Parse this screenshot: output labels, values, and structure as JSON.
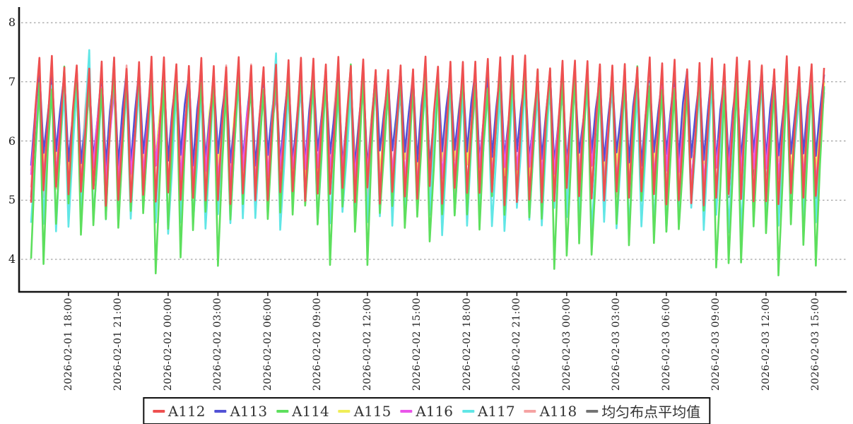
{
  "chart_data": {
    "type": "line",
    "title": "",
    "x_axis": {
      "start": "2026-02-01 15:45",
      "end": "2026-02-03 15:45",
      "sample_interval_minutes": 15,
      "cycle_minutes": 45,
      "tick_interval_hours": 3,
      "tick_labels": [
        "2026-02-01 18:00",
        "2026-02-01 21:00",
        "2026-02-02 00:00",
        "2026-02-02 03:00",
        "2026-02-02 06:00",
        "2026-02-02 09:00",
        "2026-02-02 12:00",
        "2026-02-02 15:00",
        "2026-02-02 18:00",
        "2026-02-02 21:00",
        "2026-02-03 00:00",
        "2026-02-03 03:00",
        "2026-02-03 06:00",
        "2026-02-03 09:00",
        "2026-02-03 12:00",
        "2026-02-03 15:00"
      ]
    },
    "y_axis": {
      "tick_labels": [
        "8",
        "7",
        "6",
        "5",
        "4"
      ],
      "tick_values": [
        8,
        7,
        6,
        5,
        4
      ],
      "min": 3.45,
      "max": 8.24,
      "grid": "dashed"
    },
    "pattern": "sawtooth: each 45-min cycle ramps up over 30 min (low, mid, high points at 15-min samples) then drops sharply to the next low",
    "seed": 20260201,
    "series": [
      {
        "name": "A112",
        "color": "#ee5050",
        "low": [
          4.9,
          5.25
        ],
        "high": [
          7.2,
          7.45
        ]
      },
      {
        "name": "A113",
        "color": "#5252d6",
        "low": [
          5.55,
          5.85
        ],
        "high": [
          7.0,
          7.2
        ]
      },
      {
        "name": "A114",
        "color": "#5ddf5d",
        "low": [
          4.45,
          5.1
        ],
        "high": [
          6.85,
          7.3
        ],
        "deep": {
          "p": 0.5,
          "range": [
            3.7,
            4.6
          ]
        }
      },
      {
        "name": "A115",
        "color": "#f0ee58",
        "low": [
          5.4,
          5.7
        ],
        "high": [
          6.85,
          7.05
        ]
      },
      {
        "name": "A116",
        "color": "#ea55ea",
        "low": [
          5.2,
          5.6
        ],
        "high": [
          6.75,
          6.95
        ]
      },
      {
        "name": "A117",
        "color": "#61e6e6",
        "low": [
          4.4,
          4.95
        ],
        "high": [
          6.8,
          7.05
        ],
        "spike": {
          "p": 0.07,
          "range": [
            7.4,
            7.55
          ]
        }
      },
      {
        "name": "A118",
        "color": "#f5a3a3",
        "low": [
          5.0,
          5.25
        ],
        "high": [
          7.1,
          7.3
        ]
      },
      {
        "name": "均匀布点平均值",
        "color": "#747474",
        "derived": "mean_of_other_series"
      }
    ],
    "draw_order": [
      "均匀布点平均值",
      "A118",
      "A115",
      "A113",
      "A116",
      "A117",
      "A114",
      "A112"
    ],
    "line_width": 2.6,
    "legend": {
      "position": "bottom-center",
      "border_color": "#111111"
    },
    "grid_color": "#8a8a8a",
    "axis_color": "#141414"
  }
}
